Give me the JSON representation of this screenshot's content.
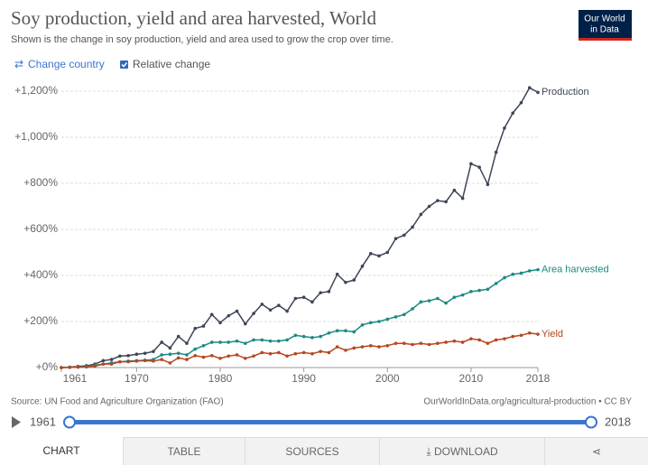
{
  "chart_data": {
    "type": "line",
    "title": "Soy production, yield and area harvested, World",
    "subtitle": "Shown is the change in soy production, yield and area used to grow the crop over time.",
    "source": "Source: UN Food and Agriculture Organization (FAO)",
    "url": "OurWorldInData.org/agricultural-production • CC BY",
    "logo": [
      "Our World",
      "in Data"
    ],
    "x": [
      1961,
      1962,
      1963,
      1964,
      1965,
      1966,
      1967,
      1968,
      1969,
      1970,
      1971,
      1972,
      1973,
      1974,
      1975,
      1976,
      1977,
      1978,
      1979,
      1980,
      1981,
      1982,
      1983,
      1984,
      1985,
      1986,
      1987,
      1988,
      1989,
      1990,
      1991,
      1992,
      1993,
      1994,
      1995,
      1996,
      1997,
      1998,
      1999,
      2000,
      2001,
      2002,
      2003,
      2004,
      2005,
      2006,
      2007,
      2008,
      2009,
      2010,
      2011,
      2012,
      2013,
      2014,
      2015,
      2016,
      2017,
      2018
    ],
    "series": [
      {
        "name": "Production",
        "color": "#3d4558",
        "values": [
          0,
          2,
          5,
          8,
          15,
          30,
          35,
          50,
          52,
          58,
          62,
          70,
          110,
          85,
          135,
          105,
          170,
          180,
          230,
          195,
          225,
          245,
          190,
          235,
          275,
          250,
          270,
          245,
          300,
          305,
          285,
          325,
          330,
          405,
          370,
          380,
          440,
          495,
          485,
          500,
          560,
          575,
          610,
          665,
          700,
          725,
          720,
          770,
          735,
          885,
          870,
          795,
          935,
          1040,
          1105,
          1150,
          1215,
          1195
        ]
      },
      {
        "name": "Area harvested",
        "color": "#1a8a83",
        "values": [
          0,
          1,
          3,
          5,
          10,
          15,
          20,
          25,
          28,
          30,
          32,
          35,
          55,
          58,
          62,
          55,
          80,
          95,
          110,
          110,
          110,
          115,
          105,
          120,
          120,
          115,
          115,
          120,
          140,
          135,
          130,
          135,
          150,
          160,
          160,
          155,
          185,
          195,
          200,
          210,
          220,
          230,
          255,
          285,
          290,
          300,
          280,
          305,
          315,
          330,
          335,
          340,
          365,
          390,
          405,
          410,
          420,
          425
        ]
      },
      {
        "name": "Yield",
        "color": "#b6461e",
        "values": [
          0,
          1,
          2,
          3,
          6,
          15,
          15,
          25,
          25,
          28,
          30,
          28,
          35,
          20,
          42,
          35,
          52,
          45,
          52,
          40,
          50,
          55,
          40,
          50,
          65,
          60,
          65,
          50,
          60,
          65,
          60,
          70,
          65,
          90,
          75,
          85,
          90,
          95,
          90,
          95,
          105,
          105,
          100,
          105,
          100,
          105,
          110,
          115,
          110,
          125,
          120,
          105,
          120,
          125,
          135,
          140,
          150,
          145
        ]
      }
    ],
    "xlim": [
      1961,
      2018
    ],
    "xticks": [
      1961,
      1970,
      1980,
      1990,
      2000,
      2010,
      2018
    ],
    "ylim": [
      0,
      1200
    ],
    "yticks": [
      {
        "value": 0,
        "label": "+0%"
      },
      {
        "value": 200,
        "label": "+200%"
      },
      {
        "value": 400,
        "label": "+400%"
      },
      {
        "value": 600,
        "label": "+600%"
      },
      {
        "value": 800,
        "label": "+800%"
      },
      {
        "value": 1000,
        "label": "+1,000%"
      },
      {
        "value": 1200,
        "label": "+1,200%"
      }
    ],
    "grid": true
  },
  "ui": {
    "change_country": "Change country",
    "relative_change": "Relative change",
    "timeline": {
      "start": "1961",
      "end": "2018"
    },
    "tabs": [
      "CHART",
      "TABLE",
      "SOURCES",
      "DOWNLOAD"
    ]
  }
}
